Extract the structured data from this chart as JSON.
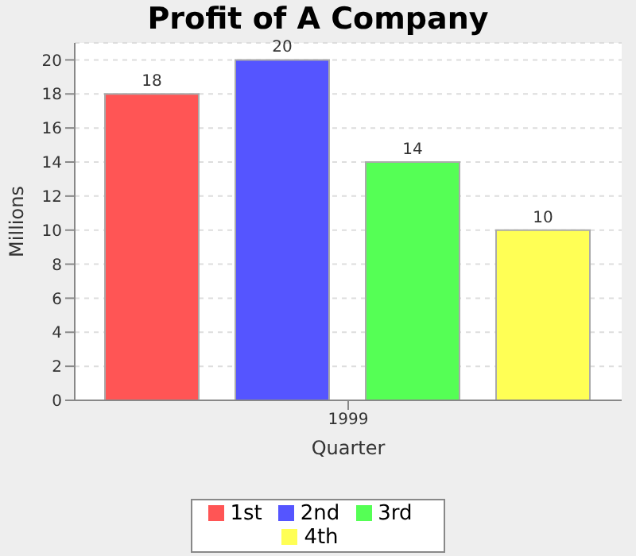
{
  "chart_data": {
    "type": "bar",
    "title": "Profit of A Company",
    "xlabel": "Quarter",
    "ylabel": "Millions",
    "categories": [
      "1999"
    ],
    "series": [
      {
        "name": "1st",
        "color": "#ff5555",
        "values": [
          18
        ]
      },
      {
        "name": "2nd",
        "color": "#5555ff",
        "values": [
          20
        ]
      },
      {
        "name": "3rd",
        "color": "#55ff55",
        "values": [
          14
        ]
      },
      {
        "name": "4th",
        "color": "#ffff55",
        "values": [
          10
        ]
      }
    ],
    "ylim": [
      0,
      21
    ],
    "yticks": [
      0,
      2,
      4,
      6,
      8,
      10,
      12,
      14,
      16,
      18,
      20
    ],
    "grid": "y",
    "legend": "bottom",
    "data_labels": true
  }
}
